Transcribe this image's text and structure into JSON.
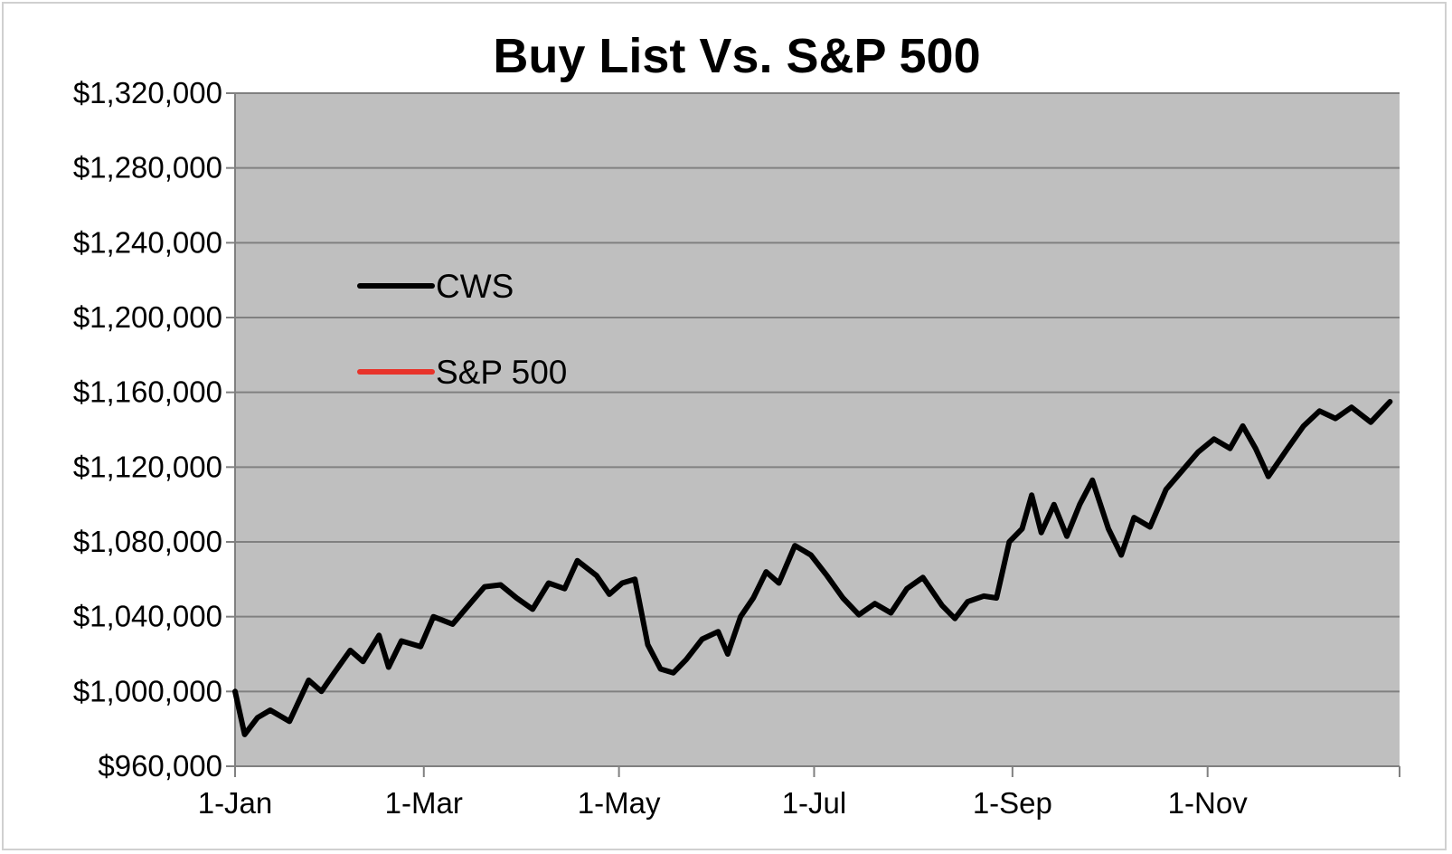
{
  "chart_data": {
    "type": "line",
    "title": "Buy List Vs. S&P 500",
    "xlabel": "",
    "ylabel": "",
    "x_ticks": [
      "1-Jan",
      "1-Mar",
      "1-May",
      "1-Jul",
      "1-Sep",
      "1-Nov"
    ],
    "y_ticks": [
      "$960,000",
      "$1,000,000",
      "$1,040,000",
      "$1,080,000",
      "$1,120,000",
      "$1,160,000",
      "$1,200,000",
      "$1,240,000",
      "$1,280,000",
      "$1,320,000"
    ],
    "ylim": [
      960000,
      1320000
    ],
    "xlim": [
      "1-Jan",
      "31-Dec"
    ],
    "grid": "horizontal",
    "legend_position": "left",
    "plot_background": "#bfbfbf",
    "series": [
      {
        "name": "CWS",
        "color": "#000000",
        "points": [
          [
            "1-Jan",
            1000000
          ],
          [
            "4-Jan",
            977000
          ],
          [
            "8-Jan",
            986000
          ],
          [
            "12-Jan",
            990000
          ],
          [
            "18-Jan",
            984000
          ],
          [
            "24-Jan",
            1006000
          ],
          [
            "28-Jan",
            1000000
          ],
          [
            "1-Feb",
            1010000
          ],
          [
            "6-Feb",
            1022000
          ],
          [
            "10-Feb",
            1016000
          ],
          [
            "15-Feb",
            1030000
          ],
          [
            "18-Feb",
            1013000
          ],
          [
            "22-Feb",
            1027000
          ],
          [
            "28-Feb",
            1024000
          ],
          [
            "4-Mar",
            1040000
          ],
          [
            "10-Mar",
            1036000
          ],
          [
            "16-Mar",
            1048000
          ],
          [
            "20-Mar",
            1056000
          ],
          [
            "25-Mar",
            1057000
          ],
          [
            "30-Mar",
            1050000
          ],
          [
            "4-Apr",
            1044000
          ],
          [
            "9-Apr",
            1058000
          ],
          [
            "14-Apr",
            1055000
          ],
          [
            "18-Apr",
            1070000
          ],
          [
            "24-Apr",
            1062000
          ],
          [
            "28-Apr",
            1052000
          ],
          [
            "2-May",
            1058000
          ],
          [
            "6-May",
            1060000
          ],
          [
            "10-May",
            1025000
          ],
          [
            "14-May",
            1012000
          ],
          [
            "18-May",
            1010000
          ],
          [
            "22-May",
            1017000
          ],
          [
            "27-May",
            1028000
          ],
          [
            "1-Jun",
            1032000
          ],
          [
            "4-Jun",
            1020000
          ],
          [
            "8-Jun",
            1040000
          ],
          [
            "12-Jun",
            1050000
          ],
          [
            "16-Jun",
            1064000
          ],
          [
            "20-Jun",
            1058000
          ],
          [
            "25-Jun",
            1078000
          ],
          [
            "30-Jun",
            1073000
          ],
          [
            "5-Jul",
            1062000
          ],
          [
            "10-Jul",
            1050000
          ],
          [
            "15-Jul",
            1041000
          ],
          [
            "20-Jul",
            1047000
          ],
          [
            "25-Jul",
            1042000
          ],
          [
            "30-Jul",
            1055000
          ],
          [
            "4-Aug",
            1061000
          ],
          [
            "10-Aug",
            1046000
          ],
          [
            "14-Aug",
            1039000
          ],
          [
            "18-Aug",
            1048000
          ],
          [
            "23-Aug",
            1051000
          ],
          [
            "27-Aug",
            1050000
          ],
          [
            "31-Aug",
            1080000
          ],
          [
            "4-Sep",
            1087000
          ],
          [
            "7-Sep",
            1105000
          ],
          [
            "10-Sep",
            1085000
          ],
          [
            "14-Sep",
            1100000
          ],
          [
            "18-Sep",
            1083000
          ],
          [
            "22-Sep",
            1100000
          ],
          [
            "26-Sep",
            1113000
          ],
          [
            "1-Oct",
            1087000
          ],
          [
            "5-Oct",
            1073000
          ],
          [
            "9-Oct",
            1093000
          ],
          [
            "14-Oct",
            1088000
          ],
          [
            "19-Oct",
            1108000
          ],
          [
            "24-Oct",
            1118000
          ],
          [
            "29-Oct",
            1128000
          ],
          [
            "3-Nov",
            1135000
          ],
          [
            "8-Nov",
            1130000
          ],
          [
            "12-Nov",
            1142000
          ],
          [
            "16-Nov",
            1130000
          ],
          [
            "20-Nov",
            1115000
          ],
          [
            "26-Nov",
            1130000
          ],
          [
            "1-Dec",
            1142000
          ],
          [
            "6-Dec",
            1150000
          ],
          [
            "11-Dec",
            1146000
          ],
          [
            "16-Dec",
            1152000
          ],
          [
            "22-Dec",
            1144000
          ],
          [
            "28-Dec",
            1155000
          ]
        ]
      },
      {
        "name": "S&P 500",
        "color": "#e8332a",
        "points": []
      }
    ]
  }
}
